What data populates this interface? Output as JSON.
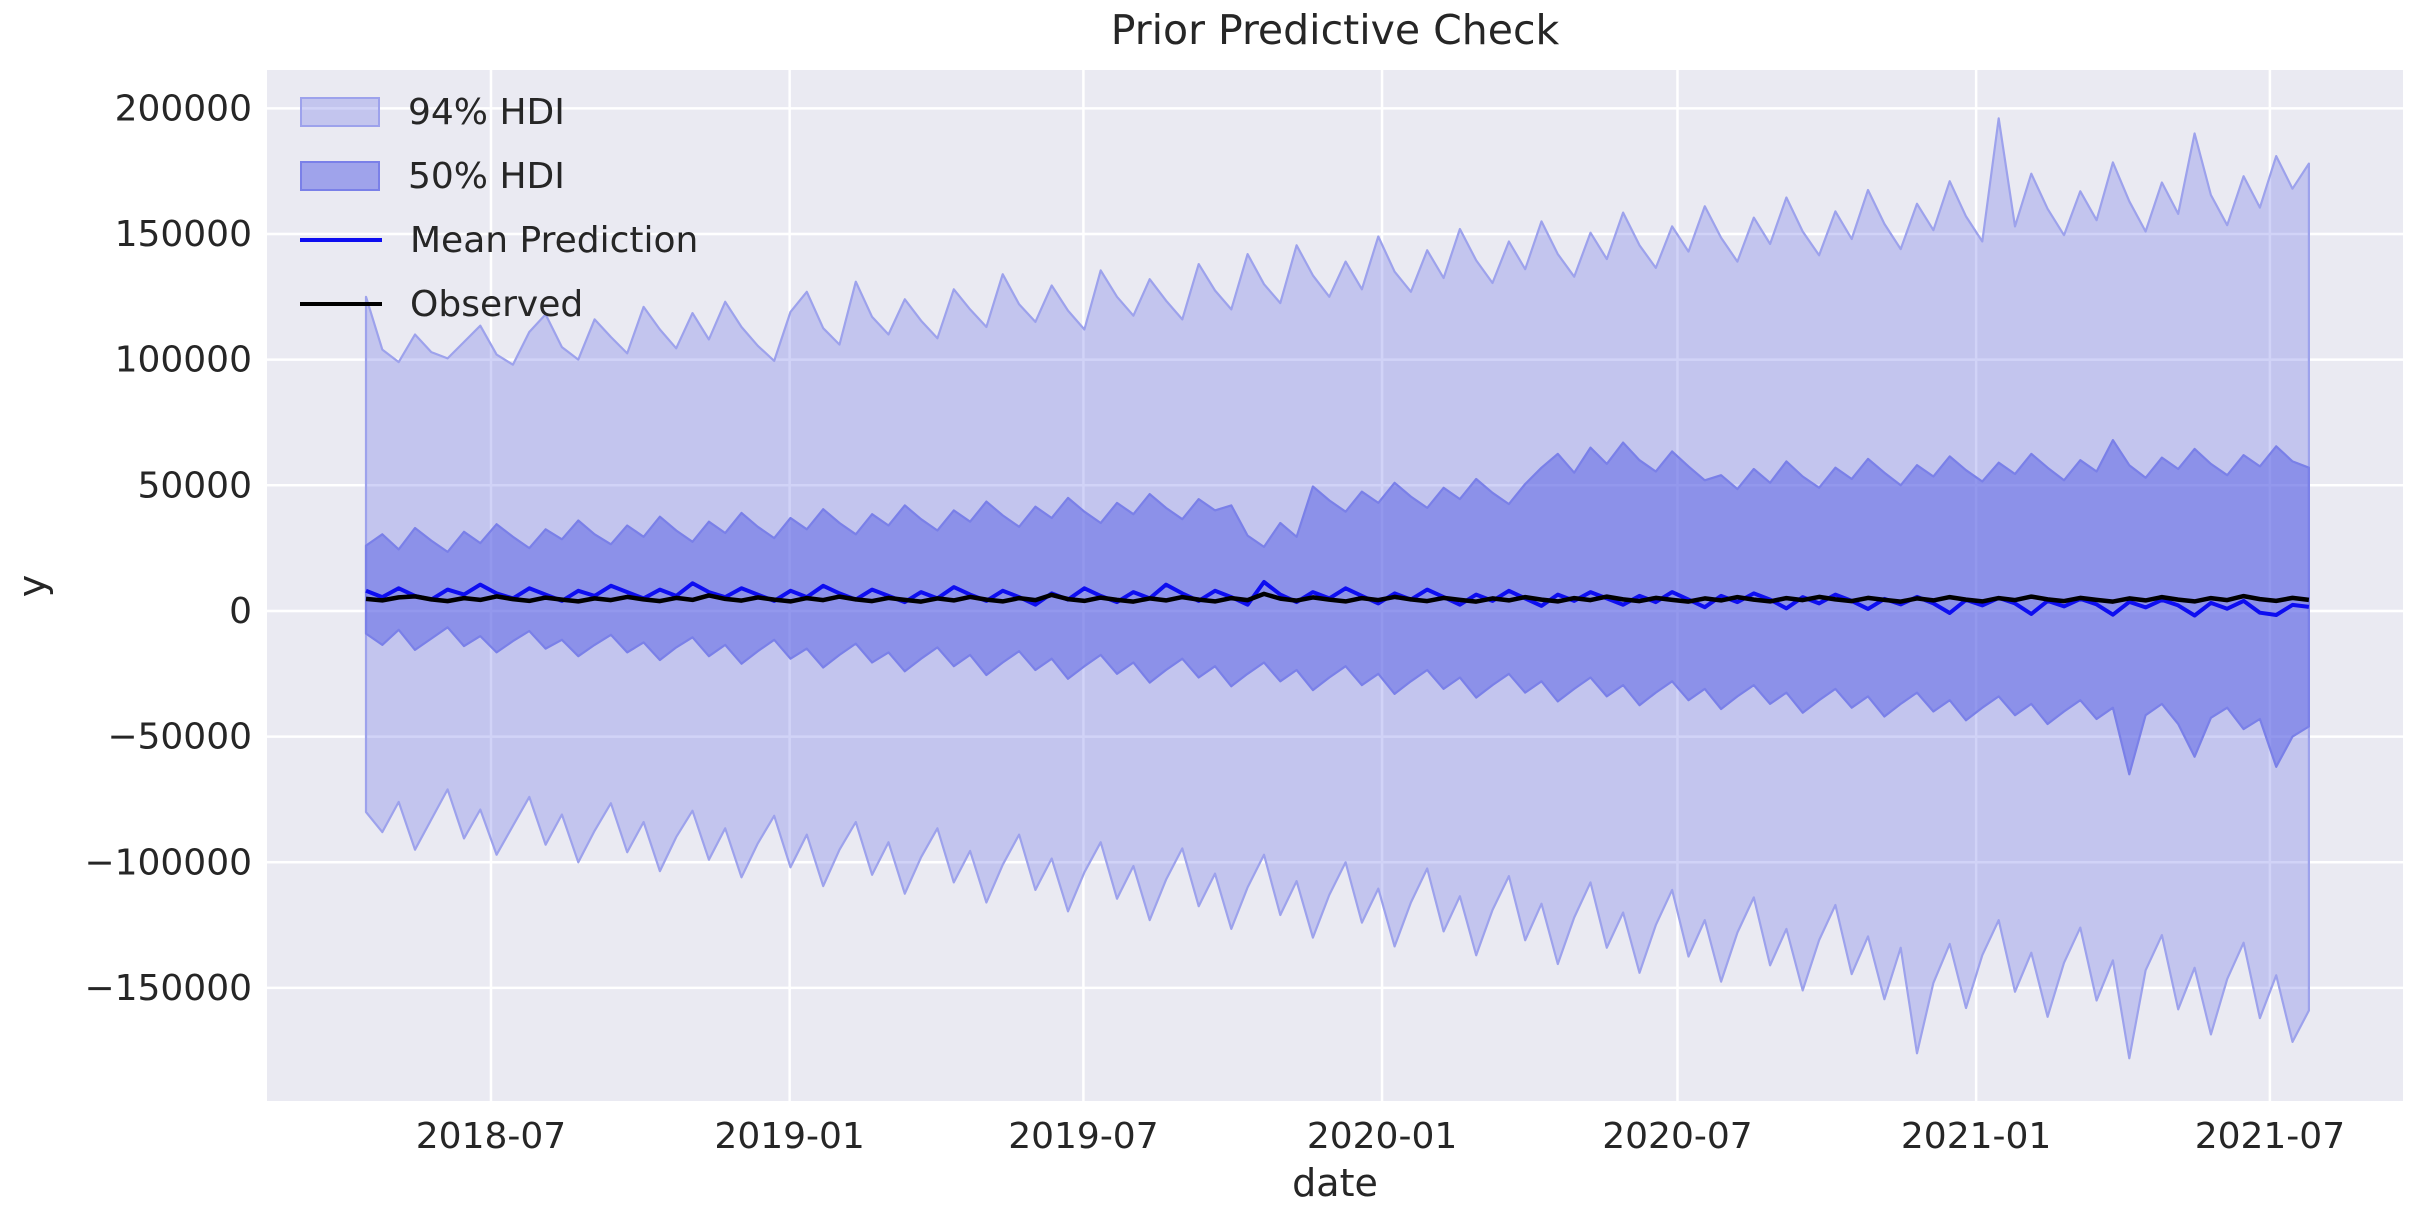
{
  "figure": {
    "title": "Prior Predictive Check",
    "xlabel": "date",
    "ylabel": "y"
  },
  "legend": {
    "position": "upper-left",
    "items": [
      {
        "label": "94% HDI",
        "swatch": "patch-light"
      },
      {
        "label": "50% HDI",
        "swatch": "patch-dark"
      },
      {
        "label": "Mean Prediction",
        "swatch": "line-blue"
      },
      {
        "label": "Observed",
        "swatch": "line-black"
      }
    ]
  },
  "colors": {
    "axes_background": "#eaeaf2",
    "grid": "#ffffff",
    "text": "#262626",
    "band94_fill": "rgba(122,128,233,0.35)",
    "band94_edge": "#9da2ec",
    "band50_fill": "rgba(90,98,228,0.52)",
    "band50_edge": "#7a80e8",
    "mean_line": "#0d0df0",
    "observed_line": "#000000"
  },
  "chart_data": {
    "type": "area",
    "title": "Prior Predictive Check",
    "xlabel": "date",
    "ylabel": "y",
    "grid": true,
    "legend_position": "upper-left",
    "xlim": [
      "2018-02-13",
      "2021-09-21"
    ],
    "ylim": [
      -195000,
      215250
    ],
    "x_ticks": [
      {
        "date": "2018-07-01",
        "label": "2018-07"
      },
      {
        "date": "2019-01-01",
        "label": "2019-01"
      },
      {
        "date": "2019-07-01",
        "label": "2019-07"
      },
      {
        "date": "2020-01-01",
        "label": "2020-01"
      },
      {
        "date": "2020-07-01",
        "label": "2020-07"
      },
      {
        "date": "2021-01-01",
        "label": "2021-01"
      },
      {
        "date": "2021-07-01",
        "label": "2021-07"
      }
    ],
    "y_ticks": [
      {
        "value": -150000,
        "label": "−150000"
      },
      {
        "value": -100000,
        "label": "−100000"
      },
      {
        "value": -50000,
        "label": "−50000"
      },
      {
        "value": 0,
        "label": "0"
      },
      {
        "value": 50000,
        "label": "50000"
      },
      {
        "value": 100000,
        "label": "100000"
      },
      {
        "value": 150000,
        "label": "150000"
      },
      {
        "value": 200000,
        "label": "200000"
      }
    ],
    "x_start_date": "2018-04-15",
    "x_end_date": "2021-07-25",
    "n_points": 120,
    "series": [
      {
        "name": "94% HDI",
        "kind": "band",
        "upper": [
          125000,
          104000,
          99000,
          110000,
          103000,
          100500,
          107000,
          113500,
          102000,
          98000,
          111000,
          118000,
          105000,
          100000,
          116000,
          109000,
          102500,
          121000,
          112000,
          104500,
          118500,
          108000,
          123000,
          113000,
          105500,
          99500,
          119000,
          127000,
          112500,
          106000,
          131000,
          117000,
          110000,
          124000,
          115500,
          108500,
          128000,
          120000,
          113000,
          134000,
          122000,
          115000,
          129500,
          119500,
          112000,
          135500,
          125000,
          117500,
          132000,
          123500,
          116000,
          138000,
          127500,
          120000,
          142000,
          130000,
          122500,
          145500,
          133500,
          125000,
          139000,
          128000,
          149000,
          135000,
          127000,
          143500,
          132500,
          152000,
          139500,
          130500,
          147000,
          136000,
          155000,
          142000,
          133000,
          150500,
          140000,
          158500,
          145500,
          136500,
          153000,
          143000,
          161000,
          148500,
          139000,
          156500,
          146000,
          164500,
          151000,
          141500,
          159000,
          148000,
          167500,
          154000,
          144000,
          162000,
          151500,
          171000,
          157000,
          147000,
          196000,
          153000,
          174000,
          160000,
          149500,
          167000,
          155500,
          178500,
          163000,
          151000,
          170500,
          158000,
          190000,
          165500,
          153500,
          173000,
          160500,
          181000,
          168000,
          178000
        ],
        "lower": [
          -80000,
          -88000,
          -76000,
          -95000,
          -83000,
          -71000,
          -90500,
          -79000,
          -97000,
          -85500,
          -74000,
          -93000,
          -81000,
          -100000,
          -87500,
          -76500,
          -96000,
          -84000,
          -103500,
          -90000,
          -79500,
          -99000,
          -86500,
          -106000,
          -92500,
          -81500,
          -102000,
          -89000,
          -109500,
          -95000,
          -84000,
          -105000,
          -92000,
          -112500,
          -98000,
          -86500,
          -108000,
          -95500,
          -116000,
          -101000,
          -89000,
          -111000,
          -98500,
          -119500,
          -104000,
          -92000,
          -114500,
          -101500,
          -123000,
          -107000,
          -94500,
          -117500,
          -104500,
          -126500,
          -110000,
          -97000,
          -121000,
          -107500,
          -130000,
          -113000,
          -100000,
          -124000,
          -110500,
          -133500,
          -116000,
          -102500,
          -127500,
          -113500,
          -137000,
          -119000,
          -105500,
          -131000,
          -116500,
          -140500,
          -122000,
          -108000,
          -134000,
          -120000,
          -144000,
          -125000,
          -111000,
          -137500,
          -123000,
          -147500,
          -128000,
          -114000,
          -141000,
          -126500,
          -151000,
          -131000,
          -117000,
          -144500,
          -129500,
          -154500,
          -134000,
          -176000,
          -148000,
          -132500,
          -158000,
          -137000,
          -123000,
          -151500,
          -136000,
          -161500,
          -140000,
          -126000,
          -155000,
          -139000,
          -178000,
          -143000,
          -129000,
          -158500,
          -142000,
          -168500,
          -146500,
          -132000,
          -162000,
          -145000,
          -171500,
          -159000
        ]
      },
      {
        "name": "50% HDI",
        "kind": "band",
        "upper": [
          26000,
          30500,
          24500,
          33000,
          28000,
          23500,
          31500,
          27000,
          34500,
          29500,
          25000,
          32500,
          28500,
          36000,
          30500,
          26500,
          34000,
          29500,
          37500,
          32000,
          27500,
          35500,
          31000,
          39000,
          33500,
          29000,
          37000,
          32500,
          40500,
          35000,
          30500,
          38500,
          34000,
          42000,
          36500,
          32000,
          40000,
          35500,
          43500,
          38000,
          33500,
          41500,
          37000,
          45000,
          39500,
          35000,
          43000,
          38500,
          46500,
          41000,
          36500,
          44500,
          40000,
          42000,
          30000,
          25500,
          35000,
          29500,
          49500,
          44000,
          39500,
          47500,
          43000,
          51000,
          45500,
          41000,
          49000,
          44500,
          52500,
          47000,
          42500,
          50500,
          57000,
          62500,
          55000,
          65000,
          58500,
          67000,
          60000,
          55500,
          63500,
          57500,
          52000,
          54000,
          48500,
          56500,
          51000,
          59500,
          53500,
          49000,
          57000,
          52500,
          60500,
          55000,
          50000,
          58000,
          53500,
          61500,
          56000,
          51500,
          59000,
          54500,
          62500,
          57000,
          52000,
          60000,
          55500,
          68000,
          58000,
          53000,
          61000,
          56500,
          64500,
          58500,
          54000,
          62000,
          57500,
          65500,
          59500,
          57000
        ],
        "lower": [
          -9000,
          -13500,
          -7500,
          -15500,
          -11000,
          -6500,
          -14000,
          -10000,
          -16500,
          -12000,
          -8000,
          -15000,
          -11500,
          -18000,
          -13500,
          -9500,
          -16500,
          -12500,
          -19500,
          -14500,
          -10500,
          -18000,
          -13500,
          -21000,
          -16000,
          -11500,
          -19000,
          -15000,
          -22500,
          -17500,
          -13000,
          -20500,
          -16500,
          -24000,
          -19000,
          -14500,
          -22000,
          -17500,
          -25500,
          -20500,
          -16000,
          -23500,
          -19000,
          -27000,
          -22000,
          -17500,
          -25000,
          -20500,
          -28500,
          -23500,
          -19000,
          -26500,
          -22000,
          -30000,
          -25000,
          -20500,
          -28000,
          -23500,
          -31500,
          -26500,
          -22000,
          -29500,
          -25000,
          -33000,
          -28000,
          -23500,
          -31000,
          -26500,
          -34500,
          -29500,
          -25000,
          -32500,
          -28000,
          -36000,
          -31000,
          -26500,
          -34000,
          -29500,
          -37500,
          -32500,
          -28000,
          -35500,
          -31000,
          -39000,
          -34000,
          -29500,
          -37000,
          -32500,
          -40500,
          -35500,
          -31000,
          -38500,
          -34000,
          -42000,
          -37000,
          -32500,
          -40000,
          -35500,
          -43500,
          -38500,
          -34000,
          -41500,
          -37000,
          -45000,
          -40000,
          -35500,
          -43000,
          -38500,
          -65000,
          -41500,
          -37000,
          -45000,
          -58000,
          -42500,
          -38500,
          -47000,
          -43000,
          -62000,
          -50000,
          -46000
        ]
      },
      {
        "name": "Mean Prediction",
        "kind": "line",
        "values": [
          8000,
          5500,
          9000,
          6000,
          4500,
          8500,
          6500,
          10500,
          7000,
          5000,
          9000,
          6500,
          4000,
          8000,
          6000,
          10000,
          7500,
          5000,
          8500,
          6000,
          11000,
          7500,
          5500,
          9000,
          6500,
          4000,
          8000,
          5500,
          10000,
          7000,
          4500,
          8500,
          6000,
          3500,
          7500,
          5000,
          9500,
          6500,
          4000,
          8000,
          5500,
          2500,
          7000,
          4500,
          9000,
          6000,
          3500,
          7500,
          5000,
          10500,
          7000,
          4000,
          8000,
          5500,
          2500,
          11500,
          6500,
          3500,
          7500,
          5000,
          9000,
          6000,
          3000,
          7000,
          4500,
          8500,
          5500,
          2500,
          6500,
          4000,
          8000,
          5000,
          2000,
          6500,
          4000,
          7500,
          5000,
          2500,
          6000,
          3500,
          7500,
          4500,
          1500,
          6000,
          3500,
          7000,
          4500,
          1000,
          5500,
          3000,
          6500,
          4000,
          800,
          4800,
          2600,
          5600,
          3000,
          -800,
          4400,
          2200,
          5200,
          3000,
          -1200,
          4000,
          1800,
          4800,
          2600,
          -1500,
          3600,
          1400,
          4400,
          2200,
          -1800,
          3200,
          900,
          4000,
          -700,
          -1600,
          2400,
          1600
        ]
      },
      {
        "name": "Observed",
        "kind": "line",
        "values": [
          4800,
          4200,
          5400,
          5800,
          4600,
          3900,
          5100,
          4400,
          5800,
          4700,
          4000,
          5300,
          4500,
          3800,
          5000,
          4300,
          5600,
          4600,
          3900,
          5200,
          4400,
          6200,
          4800,
          4100,
          5400,
          4500,
          3800,
          5100,
          4300,
          5700,
          4600,
          3900,
          5200,
          4400,
          3700,
          5000,
          4200,
          5600,
          4500,
          3800,
          5100,
          4300,
          6400,
          4700,
          4000,
          5300,
          4400,
          3700,
          5000,
          4200,
          5500,
          4500,
          3800,
          5100,
          4300,
          6800,
          4900,
          4100,
          5400,
          4500,
          3800,
          5100,
          4300,
          5600,
          4600,
          3900,
          5200,
          4400,
          3700,
          5000,
          4200,
          5500,
          4500,
          3800,
          5100,
          4300,
          5700,
          4600,
          3900,
          5200,
          4400,
          3700,
          5000,
          4200,
          5500,
          4500,
          3800,
          5100,
          4300,
          5600,
          4600,
          3900,
          5200,
          4400,
          3700,
          5000,
          4200,
          5500,
          4500,
          3800,
          5100,
          4300,
          5700,
          4600,
          3900,
          5200,
          4400,
          3700,
          5000,
          4200,
          5500,
          4500,
          3800,
          5100,
          4300,
          5900,
          4700,
          4000,
          5200,
          4400
        ]
      }
    ]
  }
}
